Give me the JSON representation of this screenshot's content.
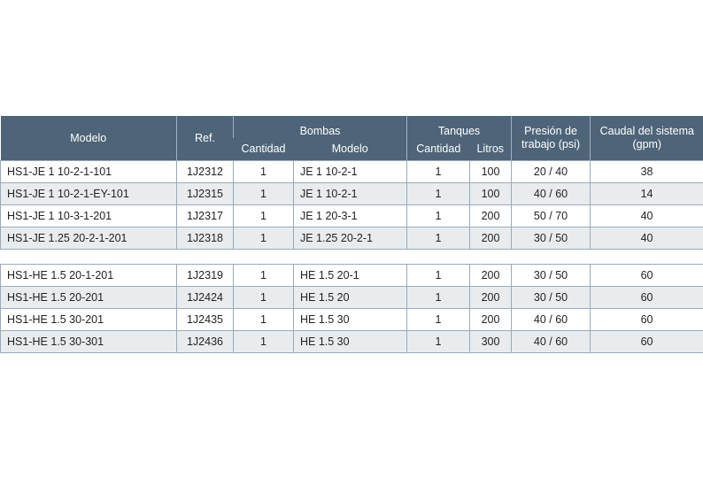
{
  "headers": {
    "modelo": "Modelo",
    "ref": "Ref.",
    "bombas": "Bombas",
    "bombas_cantidad": "Cantidad",
    "bombas_modelo": "Modelo",
    "tanques": "Tanques",
    "tanques_cantidad": "Cantidad",
    "tanques_litros": "Litros",
    "presion_l1": "Presión de",
    "presion_l2": "trabajo (psi)",
    "caudal_l1": "Caudal del sistema",
    "caudal_l2": "(gpm)"
  },
  "group1": [
    [
      "HS1-JE 1 10-2-1-101",
      "1J2312",
      "1",
      "JE 1 10-2-1",
      "1",
      "100",
      "20 / 40",
      "38"
    ],
    [
      "HS1-JE 1 10-2-1-EY-101",
      "1J2315",
      "1",
      "JE 1 10-2-1",
      "1",
      "100",
      "40 / 60",
      "14"
    ],
    [
      "HS1-JE 1 10-3-1-201",
      "1J2317",
      "1",
      "JE 1 20-3-1",
      "1",
      "200",
      "50 / 70",
      "40"
    ],
    [
      "HS1-JE 1.25 20-2-1-201",
      "1J2318",
      "1",
      "JE 1.25 20-2-1",
      "1",
      "200",
      "30 / 50",
      "40"
    ]
  ],
  "group2": [
    [
      "HS1-HE 1.5 20-1-201",
      "1J2319",
      "1",
      "HE 1.5 20-1",
      "1",
      "200",
      "30 / 50",
      "60"
    ],
    [
      "HS1-HE 1.5 20-201",
      "1J2424",
      "1",
      "HE 1.5 20",
      "1",
      "200",
      "30 / 50",
      "60"
    ],
    [
      "HS1-HE 1.5 30-201",
      "1J2435",
      "1",
      "HE 1.5 30",
      "1",
      "200",
      "40 / 60",
      "60"
    ],
    [
      "HS1-HE 1.5 30-301",
      "1J2436",
      "1",
      "HE 1.5 30",
      "1",
      "300",
      "40 / 60",
      "60"
    ]
  ]
}
